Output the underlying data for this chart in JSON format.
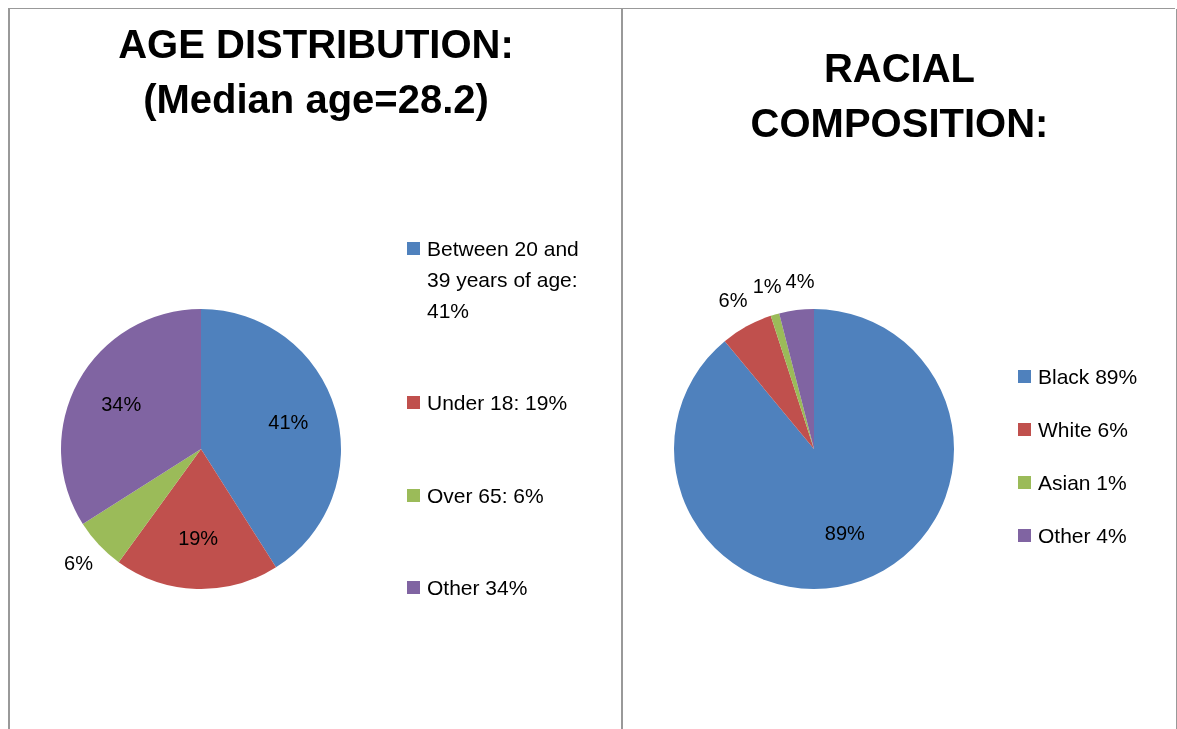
{
  "chart_data": [
    {
      "type": "pie",
      "title": "AGE DISTRIBUTION: (Median age=28.2)",
      "categories": [
        "Between 20 and 39 years of age: 41%",
        "Under 18: 19%",
        "Over 65: 6%",
        "Other 34%"
      ],
      "values": [
        41,
        19,
        6,
        34
      ],
      "colors": [
        "#4f81bd",
        "#c0504d",
        "#9bbb59",
        "#8064a2"
      ],
      "value_labels": [
        "41%",
        "19%",
        "6%",
        "34%"
      ],
      "legend": "right"
    },
    {
      "type": "pie",
      "title": "RACIAL COMPOSITION:",
      "categories": [
        "Black 89%",
        "White 6%",
        "Asian 1%",
        "Other 4%"
      ],
      "values": [
        89,
        6,
        1,
        4
      ],
      "colors": [
        "#4f81bd",
        "#c0504d",
        "#9bbb59",
        "#8064a2"
      ],
      "value_labels": [
        "89%",
        "6%",
        "1%",
        "4%"
      ],
      "legend": "right"
    }
  ]
}
